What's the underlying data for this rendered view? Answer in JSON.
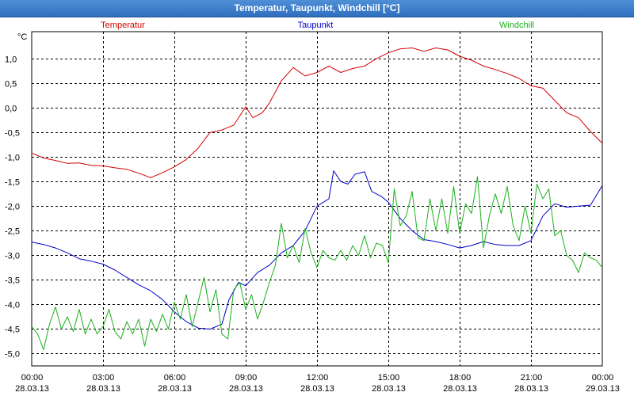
{
  "window": {
    "title": "Temperatur, Taupunkt, Windchill [°C]"
  },
  "colors": {
    "background": "#ffffff",
    "grid": "#000000",
    "temperatur": "#d40000",
    "taupunkt": "#0000cc",
    "windchill": "#1cb01c"
  },
  "chart_data": {
    "type": "line",
    "title": "Temperatur, Taupunkt, Windchill [°C]",
    "ylabel": "°C",
    "ylim": [
      -5.25,
      1.55
    ],
    "xlim": [
      0,
      24
    ],
    "grid": true,
    "legend_position": "top",
    "y_ticks": [
      1.0,
      0.5,
      0.0,
      -0.5,
      -1.0,
      -1.5,
      -2.0,
      -2.5,
      -3.0,
      -3.5,
      -4.0,
      -4.5,
      -5.0
    ],
    "y_tick_labels": [
      "1,0",
      "0,5",
      "0,0",
      "-0,5",
      "-1,0",
      "-1,5",
      "-2,0",
      "-2,5",
      "-3,0",
      "-3,5",
      "-4,0",
      "-4,5",
      "-5,0"
    ],
    "x_ticks": [
      0,
      3,
      6,
      9,
      12,
      15,
      18,
      21,
      24
    ],
    "x_tick_labels": [
      {
        "time": "00:00",
        "date": "28.03.13"
      },
      {
        "time": "03:00",
        "date": "28.03.13"
      },
      {
        "time": "06:00",
        "date": "28.03.13"
      },
      {
        "time": "09:00",
        "date": "28.03.13"
      },
      {
        "time": "12:00",
        "date": "28.03.13"
      },
      {
        "time": "15:00",
        "date": "28.03.13"
      },
      {
        "time": "18:00",
        "date": "28.03.13"
      },
      {
        "time": "21:00",
        "date": "28.03.13"
      },
      {
        "time": "00:00",
        "date": "29.03.13"
      }
    ],
    "series": [
      {
        "name": "Temperatur",
        "color": "#d40000",
        "points": [
          [
            0,
            -0.92
          ],
          [
            0.5,
            -1.02
          ],
          [
            1,
            -1.07
          ],
          [
            1.5,
            -1.13
          ],
          [
            2,
            -1.12
          ],
          [
            2.5,
            -1.17
          ],
          [
            3,
            -1.18
          ],
          [
            3.5,
            -1.22
          ],
          [
            4,
            -1.25
          ],
          [
            4.5,
            -1.33
          ],
          [
            5,
            -1.42
          ],
          [
            5.5,
            -1.32
          ],
          [
            6,
            -1.2
          ],
          [
            6.5,
            -1.05
          ],
          [
            7,
            -0.82
          ],
          [
            7.5,
            -0.5
          ],
          [
            8,
            -0.45
          ],
          [
            8.5,
            -0.35
          ],
          [
            9,
            0.02
          ],
          [
            9.3,
            -0.2
          ],
          [
            9.7,
            -0.1
          ],
          [
            10,
            0.1
          ],
          [
            10.5,
            0.55
          ],
          [
            11,
            0.82
          ],
          [
            11.5,
            0.65
          ],
          [
            12,
            0.72
          ],
          [
            12.5,
            0.85
          ],
          [
            13,
            0.72
          ],
          [
            13.5,
            0.8
          ],
          [
            14,
            0.85
          ],
          [
            14.5,
            1.0
          ],
          [
            15,
            1.12
          ],
          [
            15.5,
            1.2
          ],
          [
            16,
            1.22
          ],
          [
            16.5,
            1.15
          ],
          [
            17,
            1.22
          ],
          [
            17.5,
            1.18
          ],
          [
            18,
            1.05
          ],
          [
            18.5,
            0.97
          ],
          [
            19,
            0.85
          ],
          [
            19.5,
            0.78
          ],
          [
            20,
            0.7
          ],
          [
            20.5,
            0.6
          ],
          [
            21,
            0.45
          ],
          [
            21.5,
            0.4
          ],
          [
            22,
            0.15
          ],
          [
            22.5,
            -0.1
          ],
          [
            23,
            -0.2
          ],
          [
            23.5,
            -0.48
          ],
          [
            24,
            -0.72
          ]
        ]
      },
      {
        "name": "Taupunkt",
        "color": "#0000cc",
        "points": [
          [
            0,
            -2.73
          ],
          [
            0.5,
            -2.78
          ],
          [
            1,
            -2.85
          ],
          [
            1.5,
            -2.95
          ],
          [
            2,
            -3.07
          ],
          [
            2.5,
            -3.12
          ],
          [
            3,
            -3.18
          ],
          [
            3.5,
            -3.3
          ],
          [
            4,
            -3.45
          ],
          [
            4.5,
            -3.6
          ],
          [
            5,
            -3.72
          ],
          [
            5.5,
            -3.9
          ],
          [
            6,
            -4.15
          ],
          [
            6.5,
            -4.35
          ],
          [
            7,
            -4.48
          ],
          [
            7.5,
            -4.5
          ],
          [
            8,
            -4.4
          ],
          [
            8.3,
            -3.9
          ],
          [
            8.7,
            -3.55
          ],
          [
            9,
            -3.62
          ],
          [
            9.5,
            -3.35
          ],
          [
            10,
            -3.2
          ],
          [
            10.5,
            -2.95
          ],
          [
            11,
            -2.8
          ],
          [
            11.5,
            -2.5
          ],
          [
            12,
            -2.0
          ],
          [
            12.5,
            -1.85
          ],
          [
            12.7,
            -1.28
          ],
          [
            13,
            -1.5
          ],
          [
            13.3,
            -1.55
          ],
          [
            13.6,
            -1.35
          ],
          [
            14,
            -1.3
          ],
          [
            14.3,
            -1.7
          ],
          [
            14.7,
            -1.8
          ],
          [
            15,
            -1.92
          ],
          [
            15.5,
            -2.25
          ],
          [
            16,
            -2.5
          ],
          [
            16.5,
            -2.68
          ],
          [
            17,
            -2.72
          ],
          [
            17.5,
            -2.78
          ],
          [
            18,
            -2.85
          ],
          [
            18.5,
            -2.8
          ],
          [
            19,
            -2.72
          ],
          [
            19.5,
            -2.78
          ],
          [
            20,
            -2.8
          ],
          [
            20.5,
            -2.8
          ],
          [
            21,
            -2.7
          ],
          [
            21.5,
            -2.2
          ],
          [
            22,
            -1.95
          ],
          [
            22.5,
            -2.02
          ],
          [
            23,
            -2.0
          ],
          [
            23.5,
            -1.98
          ],
          [
            24,
            -1.58
          ]
        ]
      },
      {
        "name": "Windchill",
        "color": "#1cb01c",
        "points": [
          [
            0,
            -4.45
          ],
          [
            0.25,
            -4.6
          ],
          [
            0.5,
            -4.92
          ],
          [
            0.75,
            -4.4
          ],
          [
            1,
            -4.05
          ],
          [
            1.25,
            -4.5
          ],
          [
            1.5,
            -4.25
          ],
          [
            1.75,
            -4.55
          ],
          [
            2,
            -4.1
          ],
          [
            2.25,
            -4.6
          ],
          [
            2.5,
            -4.3
          ],
          [
            2.75,
            -4.6
          ],
          [
            3,
            -4.45
          ],
          [
            3.25,
            -4.1
          ],
          [
            3.5,
            -4.55
          ],
          [
            3.75,
            -4.7
          ],
          [
            4,
            -4.35
          ],
          [
            4.25,
            -4.6
          ],
          [
            4.5,
            -4.3
          ],
          [
            4.75,
            -4.85
          ],
          [
            5,
            -4.3
          ],
          [
            5.25,
            -4.55
          ],
          [
            5.5,
            -4.2
          ],
          [
            5.75,
            -4.5
          ],
          [
            6,
            -3.95
          ],
          [
            6.25,
            -4.3
          ],
          [
            6.5,
            -3.8
          ],
          [
            6.75,
            -4.45
          ],
          [
            7,
            -3.95
          ],
          [
            7.25,
            -3.45
          ],
          [
            7.5,
            -4.15
          ],
          [
            7.75,
            -3.7
          ],
          [
            8,
            -4.6
          ],
          [
            8.25,
            -4.7
          ],
          [
            8.5,
            -3.7
          ],
          [
            8.75,
            -3.55
          ],
          [
            9,
            -4.1
          ],
          [
            9.25,
            -3.8
          ],
          [
            9.5,
            -4.3
          ],
          [
            9.75,
            -3.95
          ],
          [
            10,
            -3.55
          ],
          [
            10.25,
            -3.2
          ],
          [
            10.5,
            -2.35
          ],
          [
            10.75,
            -3.05
          ],
          [
            11,
            -2.8
          ],
          [
            11.25,
            -3.15
          ],
          [
            11.5,
            -2.45
          ],
          [
            11.75,
            -2.95
          ],
          [
            12,
            -3.25
          ],
          [
            12.25,
            -2.9
          ],
          [
            12.5,
            -3.05
          ],
          [
            12.75,
            -3.1
          ],
          [
            13,
            -2.9
          ],
          [
            13.25,
            -3.1
          ],
          [
            13.5,
            -2.8
          ],
          [
            13.75,
            -3.0
          ],
          [
            14,
            -2.6
          ],
          [
            14.25,
            -3.05
          ],
          [
            14.5,
            -2.75
          ],
          [
            14.75,
            -2.8
          ],
          [
            15,
            -3.15
          ],
          [
            15.25,
            -1.65
          ],
          [
            15.5,
            -2.4
          ],
          [
            15.75,
            -2.2
          ],
          [
            16,
            -1.7
          ],
          [
            16.25,
            -2.65
          ],
          [
            16.5,
            -2.7
          ],
          [
            16.75,
            -1.85
          ],
          [
            17,
            -2.5
          ],
          [
            17.25,
            -1.85
          ],
          [
            17.5,
            -2.55
          ],
          [
            17.75,
            -1.6
          ],
          [
            18,
            -2.55
          ],
          [
            18.25,
            -1.95
          ],
          [
            18.5,
            -2.15
          ],
          [
            18.75,
            -1.4
          ],
          [
            19,
            -2.85
          ],
          [
            19.25,
            -2.2
          ],
          [
            19.5,
            -1.75
          ],
          [
            19.75,
            -2.15
          ],
          [
            20,
            -1.6
          ],
          [
            20.25,
            -2.4
          ],
          [
            20.5,
            -2.7
          ],
          [
            20.75,
            -2.0
          ],
          [
            21,
            -2.55
          ],
          [
            21.25,
            -1.55
          ],
          [
            21.5,
            -1.85
          ],
          [
            21.75,
            -1.65
          ],
          [
            22,
            -2.6
          ],
          [
            22.25,
            -2.5
          ],
          [
            22.5,
            -3.0
          ],
          [
            22.75,
            -3.1
          ],
          [
            23,
            -3.35
          ],
          [
            23.25,
            -2.95
          ],
          [
            23.5,
            -3.05
          ],
          [
            23.75,
            -3.1
          ],
          [
            24,
            -3.25
          ]
        ]
      }
    ]
  }
}
